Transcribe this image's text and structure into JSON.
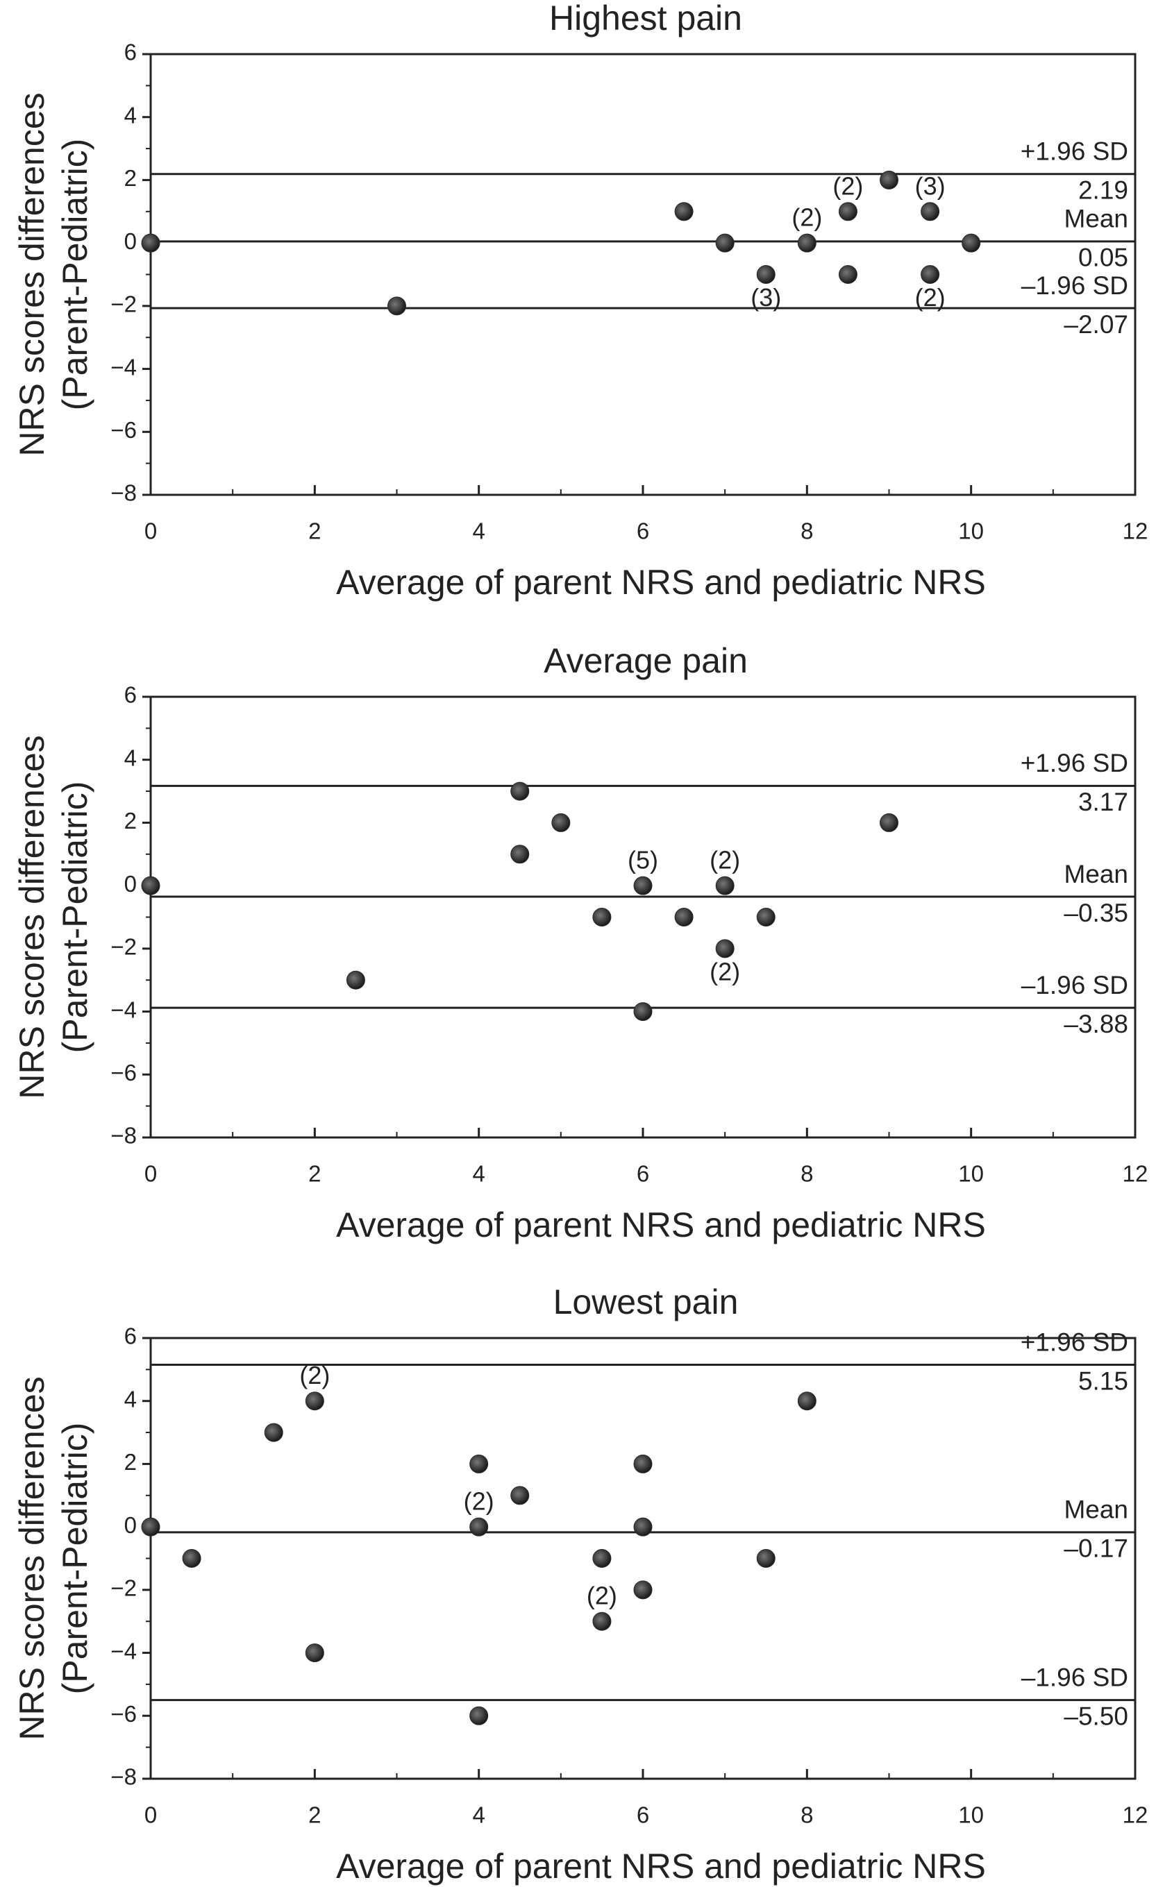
{
  "chart_data": [
    {
      "type": "scatter",
      "title": "Highest pain",
      "xlabel": "Average of parent NRS and pediatric NRS",
      "ylabel": [
        "NRS scores differences",
        "(Parent-Pediatric)"
      ],
      "xlim": [
        0,
        12
      ],
      "xticks": [
        0,
        2,
        4,
        6,
        8,
        10,
        12
      ],
      "ylim": [
        -8,
        6
      ],
      "yticks": [
        {
          "value": -8,
          "label": "−8"
        },
        {
          "value": -6,
          "label": "−6"
        },
        {
          "value": -4,
          "label": "−4"
        },
        {
          "value": -2,
          "label": "−2"
        },
        0,
        2,
        4,
        6
      ],
      "color": "#2b2b2b",
      "series": [
        {
          "x": [
            0,
            3,
            6.5,
            7,
            7.5,
            8,
            8.5,
            8.5,
            9,
            9.5,
            9.5,
            10
          ],
          "values": [
            0,
            -2,
            1,
            0,
            -1,
            0,
            1,
            -1,
            2,
            1,
            -1,
            0
          ],
          "point_labels": [
            null,
            null,
            null,
            null,
            "(3)",
            "(2)",
            "(2)",
            null,
            null,
            "(3)",
            "(2)",
            null
          ]
        }
      ],
      "ref_lines": [
        {
          "name": "+1.96 SD",
          "value": 2.19,
          "value_label": "2.19"
        },
        {
          "name": "Mean",
          "value": 0.05,
          "value_label": "0.05"
        },
        {
          "name": "–1.96 SD",
          "value": -2.07,
          "value_label": "–2.07"
        }
      ]
    },
    {
      "type": "scatter",
      "title": "Average pain",
      "xlabel": "Average of parent NRS and pediatric NRS",
      "ylabel": [
        "NRS scores differences",
        "(Parent-Pediatric)"
      ],
      "xlim": [
        0,
        12
      ],
      "xticks": [
        0,
        2,
        4,
        6,
        8,
        10,
        12
      ],
      "ylim": [
        -8,
        6
      ],
      "yticks": [
        {
          "value": -8,
          "label": "−8"
        },
        {
          "value": -6,
          "label": "−6"
        },
        {
          "value": -4,
          "label": "−4"
        },
        {
          "value": -2,
          "label": "−2"
        },
        0,
        2,
        4,
        6
      ],
      "color": "#2b2b2b",
      "series": [
        {
          "x": [
            0,
            2.5,
            4.5,
            4.5,
            5,
            5.5,
            6,
            6,
            6.5,
            7,
            7,
            7.5,
            9
          ],
          "values": [
            0,
            -3,
            3,
            1,
            2,
            -1,
            0,
            -4,
            -1,
            0,
            -2,
            -1,
            2
          ],
          "point_labels": [
            null,
            null,
            null,
            null,
            null,
            null,
            "(5)",
            null,
            null,
            "(2)",
            "(2)",
            null,
            null
          ]
        }
      ],
      "ref_lines": [
        {
          "name": "+1.96 SD",
          "value": 3.17,
          "value_label": "3.17"
        },
        {
          "name": "Mean",
          "value": -0.35,
          "value_label": "–0.35"
        },
        {
          "name": "–1.96 SD",
          "value": -3.88,
          "value_label": "–3.88"
        }
      ]
    },
    {
      "type": "scatter",
      "title": "Lowest pain",
      "xlabel": "Average of parent NRS and pediatric NRS",
      "ylabel": [
        "NRS scores differences",
        "(Parent-Pediatric)"
      ],
      "xlim": [
        0,
        12
      ],
      "xticks": [
        0,
        2,
        4,
        6,
        8,
        10,
        12
      ],
      "ylim": [
        -8,
        6
      ],
      "yticks": [
        {
          "value": -8,
          "label": "−8"
        },
        {
          "value": -6,
          "label": "−6"
        },
        {
          "value": -4,
          "label": "−4"
        },
        {
          "value": -2,
          "label": "−2"
        },
        0,
        2,
        4,
        6
      ],
      "color": "#2b2b2b",
      "series": [
        {
          "x": [
            0,
            0.5,
            1.5,
            2,
            2,
            4,
            4,
            4,
            4.5,
            5.5,
            5.5,
            6,
            6,
            6,
            7.5,
            8
          ],
          "values": [
            0,
            -1,
            3,
            4,
            -4,
            2,
            0,
            -6,
            1,
            -1,
            -3,
            2,
            0,
            -2,
            -1,
            4
          ],
          "point_labels": [
            null,
            null,
            null,
            "(2)",
            null,
            null,
            "(2)",
            null,
            null,
            null,
            "(2)",
            null,
            null,
            null,
            null,
            null
          ]
        }
      ],
      "ref_lines": [
        {
          "name": "+1.96 SD",
          "value": 5.15,
          "value_label": "5.15"
        },
        {
          "name": "Mean",
          "value": -0.17,
          "value_label": "–0.17"
        },
        {
          "name": "–1.96 SD",
          "value": -5.5,
          "value_label": "–5.50"
        }
      ]
    }
  ]
}
